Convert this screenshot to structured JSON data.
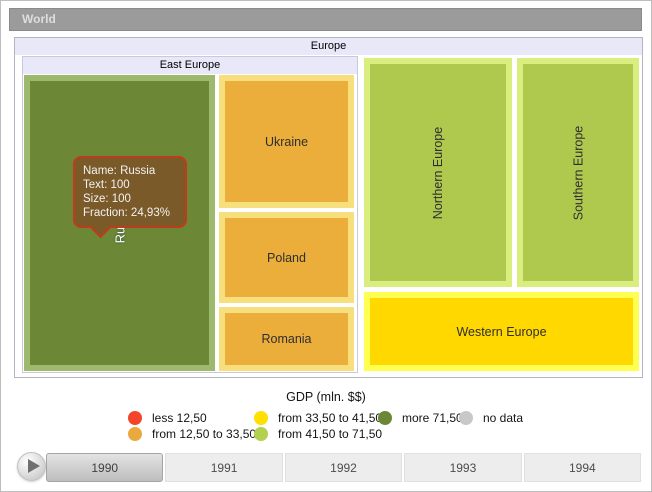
{
  "breadcrumb": {
    "label": "World"
  },
  "treemap": {
    "europe_label": "Europe",
    "east_europe_label": "East Europe",
    "tiles": {
      "russia": "Russia",
      "ukraine": "Ukraine",
      "poland": "Poland",
      "romania": "Romania",
      "northern": "Northern Europe",
      "southern": "Southern Europe",
      "western": "Western Europe"
    }
  },
  "tooltip": {
    "name": "Name: Russia",
    "text": "Text: 100",
    "size": "Size: 100",
    "fraction": "Fraction: 24,93%"
  },
  "legend": {
    "title": "GDP (mln. $$)",
    "items": [
      {
        "label": "less 12,50",
        "color": "#F2452C"
      },
      {
        "label": "from 12,50 to 33,50",
        "color": "#E9A93D"
      },
      {
        "label": "from 33,50 to 41,50",
        "color": "#FFE000"
      },
      {
        "label": "from 41,50 to 71,50",
        "color": "#B3D14E"
      },
      {
        "label": "more 71,50",
        "color": "#6C8836"
      },
      {
        "label": "no data",
        "color": "#C8C8C8"
      }
    ]
  },
  "timeline": {
    "years": [
      "1990",
      "1991",
      "1992",
      "1993",
      "1994"
    ],
    "selected_year": "1990"
  },
  "colors": {
    "world_bar_bg": "#9B9B9B",
    "group_header_bg": "#E8E8F8",
    "russia_fill": "#6C8836",
    "russia_frame": "#9CB96E",
    "orange_fill": "#EBAE3A",
    "orange_frame": "#F8DF7D",
    "green_fill": "#AFC94F",
    "green_frame": "#D9EE7E",
    "yellow_fill": "#FFD800",
    "yellow_frame": "#FFFF52",
    "tooltip_bg": "#7A5A28",
    "tooltip_border": "#C23A1C"
  },
  "chart_data": {
    "type": "treemap",
    "title": "GDP (mln. $$)",
    "breadcrumb": "World",
    "root": "Europe",
    "nodes": [
      {
        "name": "East Europe",
        "parent": "Europe",
        "type": "group"
      },
      {
        "name": "Russia",
        "parent": "East Europe",
        "text": 100,
        "size": 100,
        "fraction_pct": "24,93%",
        "color_category": "more 71,50"
      },
      {
        "name": "Ukraine",
        "parent": "East Europe",
        "color_category": "from 12,50 to 33,50"
      },
      {
        "name": "Poland",
        "parent": "East Europe",
        "color_category": "from 12,50 to 33,50"
      },
      {
        "name": "Romania",
        "parent": "East Europe",
        "color_category": "from 12,50 to 33,50"
      },
      {
        "name": "Northern Europe",
        "parent": "Europe",
        "color_category": "from 41,50 to 71,50"
      },
      {
        "name": "Southern Europe",
        "parent": "Europe",
        "color_category": "from 41,50 to 71,50"
      },
      {
        "name": "Western Europe",
        "parent": "Europe",
        "color_category": "from 33,50 to 41,50"
      }
    ],
    "legend_position": "bottom-center",
    "timeline": {
      "values": [
        "1990",
        "1991",
        "1992",
        "1993",
        "1994"
      ],
      "selected": "1990"
    }
  }
}
